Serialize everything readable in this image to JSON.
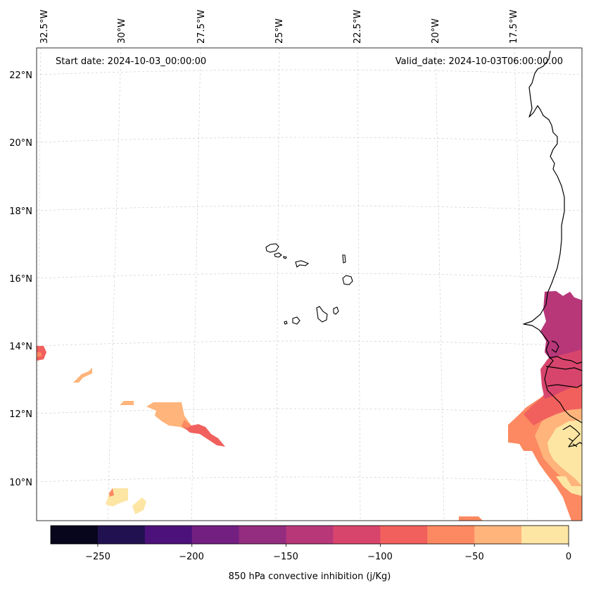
{
  "header": {
    "start_date": "Start date: 2024-10-03_00:00:00",
    "valid_date": "Valid_date: 2024-10-03T06:00:00.00"
  },
  "lon_labels": [
    "32.5°W",
    "30°W",
    "27.5°W",
    "25°W",
    "22.5°W",
    "20°W",
    "17.5°W"
  ],
  "lat_labels": [
    "22°N",
    "20°N",
    "18°N",
    "16°N",
    "14°N",
    "12°N",
    "10°N"
  ],
  "colorbar": {
    "label": "850 hPa convective inhibition (j/Kg)",
    "tick_labels": [
      "−250",
      "−200",
      "−150",
      "−100",
      "−50",
      "0"
    ],
    "bins": [
      -275,
      -250,
      -225,
      -200,
      -175,
      -150,
      -125,
      -100,
      -75,
      -50,
      -25,
      0
    ],
    "colors": [
      "#07061c",
      "#221150",
      "#4d117b",
      "#731f81",
      "#942c80",
      "#b73779",
      "#d8456c",
      "#f1605d",
      "#fc8961",
      "#feb47b",
      "#fde6a4"
    ]
  }
}
